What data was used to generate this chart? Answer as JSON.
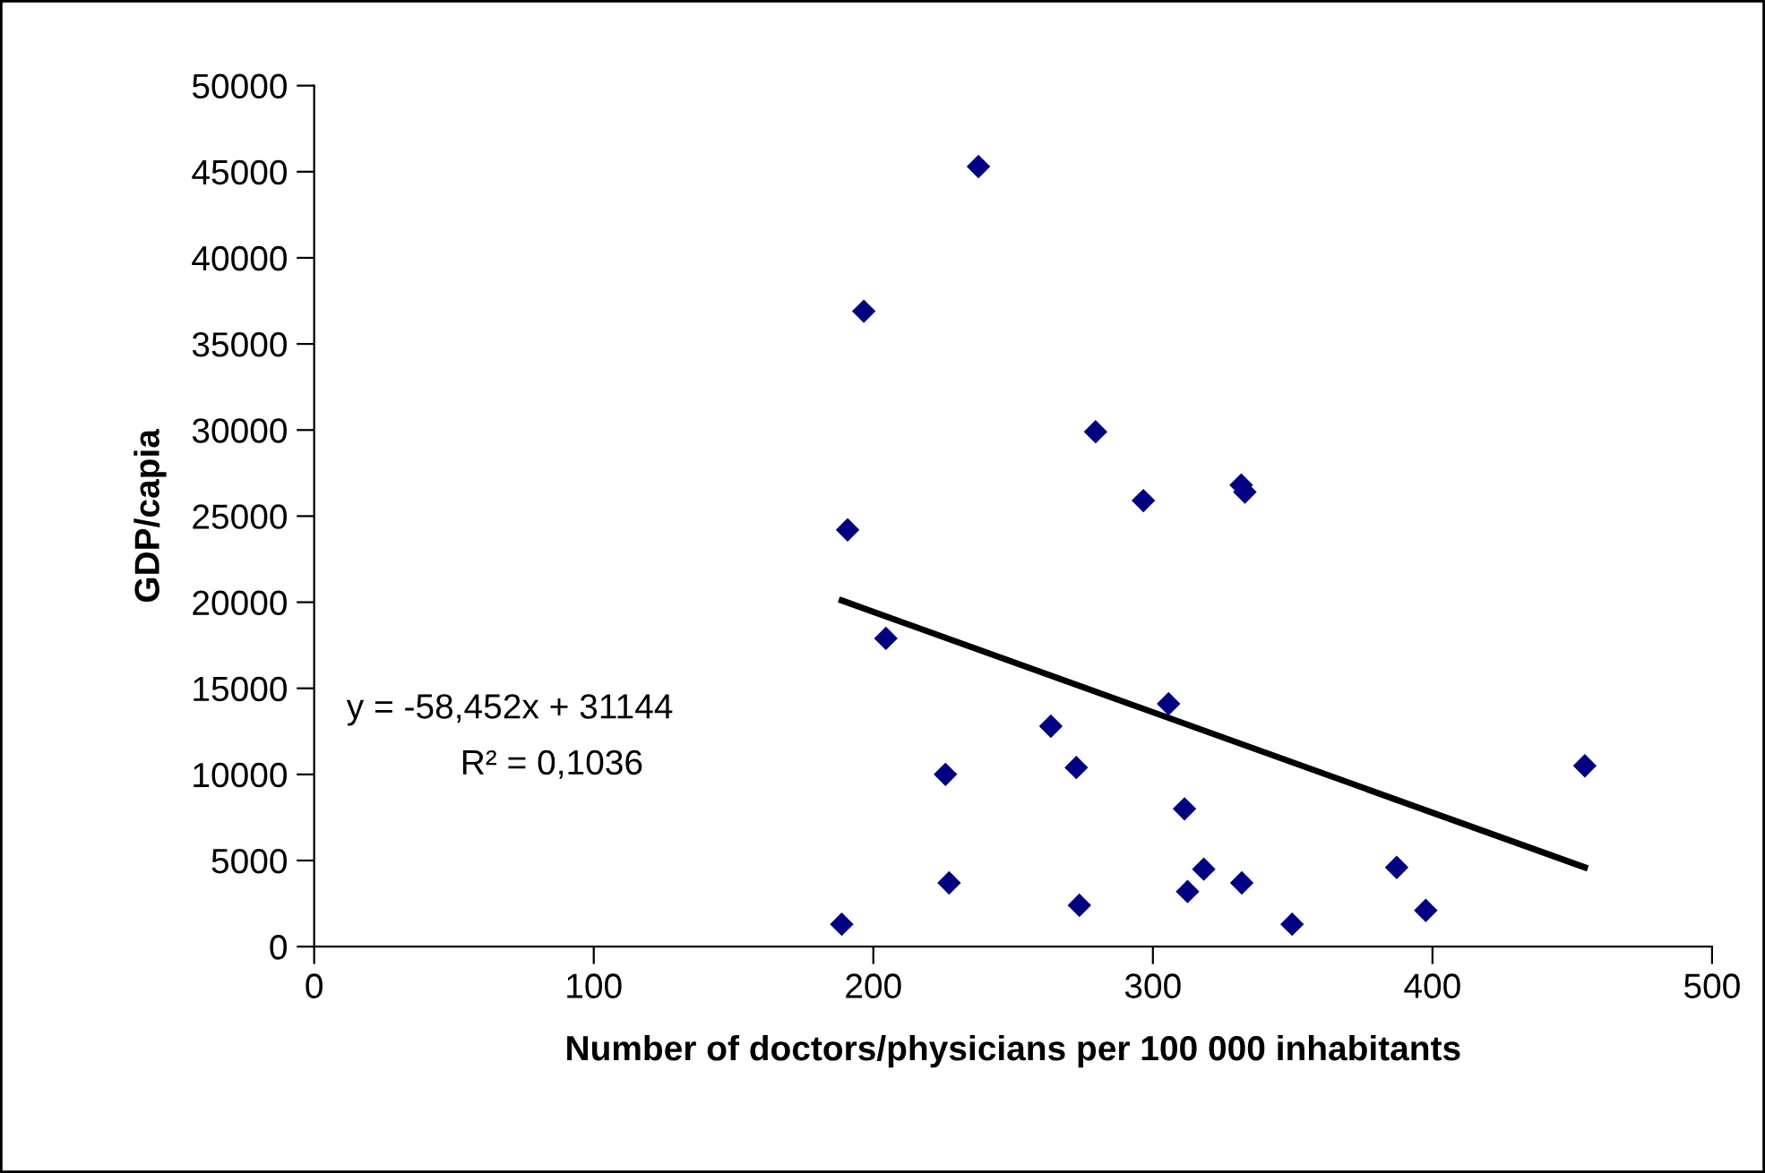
{
  "chart_data": {
    "type": "scatter",
    "xlabel": "Number of doctors/physicians per 100 000 inhabitants",
    "ylabel": "GDP/capia",
    "xlim": [
      0,
      500
    ],
    "xticks": [
      0,
      100,
      200,
      300,
      400,
      500
    ],
    "ylim": [
      0,
      50000
    ],
    "yticks": [
      0,
      5000,
      10000,
      15000,
      20000,
      25000,
      30000,
      35000,
      40000,
      45000,
      50000
    ],
    "grid": false,
    "legend": false,
    "marker": "diamond",
    "series": [
      {
        "color": "#000080",
        "x": [
          237.6,
          196.6,
          279.5,
          190.8,
          296.6,
          331.6,
          332.9,
          204.5,
          305.6,
          263.5,
          225.8,
          272.6,
          311.3,
          227.1,
          318.2,
          312.4,
          331.8,
          273.7,
          188.7,
          454.5,
          387.2,
          397.6,
          349.8
        ],
        "values": [
          45300,
          36900,
          29900,
          24200,
          25900,
          26800,
          26400,
          17900,
          14100,
          12800,
          10000,
          10400,
          8000,
          3700,
          4500,
          3200,
          3700,
          2400,
          1300,
          10500,
          4600,
          2100,
          1300
        ]
      },
      {
        "type": "line",
        "color": "#000000",
        "marker": "none",
        "line_style": "solid",
        "x": [
          188.7,
          454.5
        ],
        "values": [
          20100,
          4600
        ]
      }
    ],
    "annotations": [
      {
        "text": "y = -58,452x + 31144"
      },
      {
        "text": "R² = 0,1036"
      }
    ]
  }
}
